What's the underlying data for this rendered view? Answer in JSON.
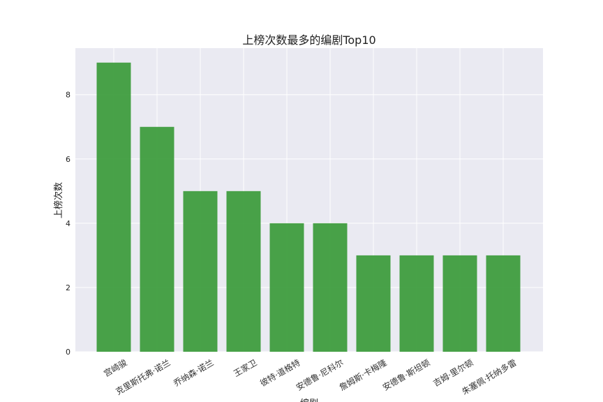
{
  "chart_data": {
    "type": "bar",
    "title": "上榜次数最多的编剧Top10",
    "xlabel": "编剧",
    "ylabel": "上榜次数",
    "categories": [
      "宫崎骏",
      "克里斯托弗·诺兰",
      "乔纳森·诺兰",
      "王家卫",
      "彼特·道格特",
      "安德鲁·尼科尔",
      "詹姆斯·卡梅隆",
      "安德鲁·斯坦顿",
      "吉姆·里尔顿",
      "朱塞佩·托纳多雷"
    ],
    "values": [
      9,
      7,
      5,
      5,
      4,
      4,
      3,
      3,
      3,
      3
    ],
    "ylim": [
      0,
      9.45
    ],
    "yticks": [
      0,
      2,
      4,
      6,
      8
    ],
    "grid": true,
    "colors": {
      "bar": "#3a9a3a",
      "plot_bg": "#eaeaf2",
      "grid": "#ffffff"
    }
  }
}
